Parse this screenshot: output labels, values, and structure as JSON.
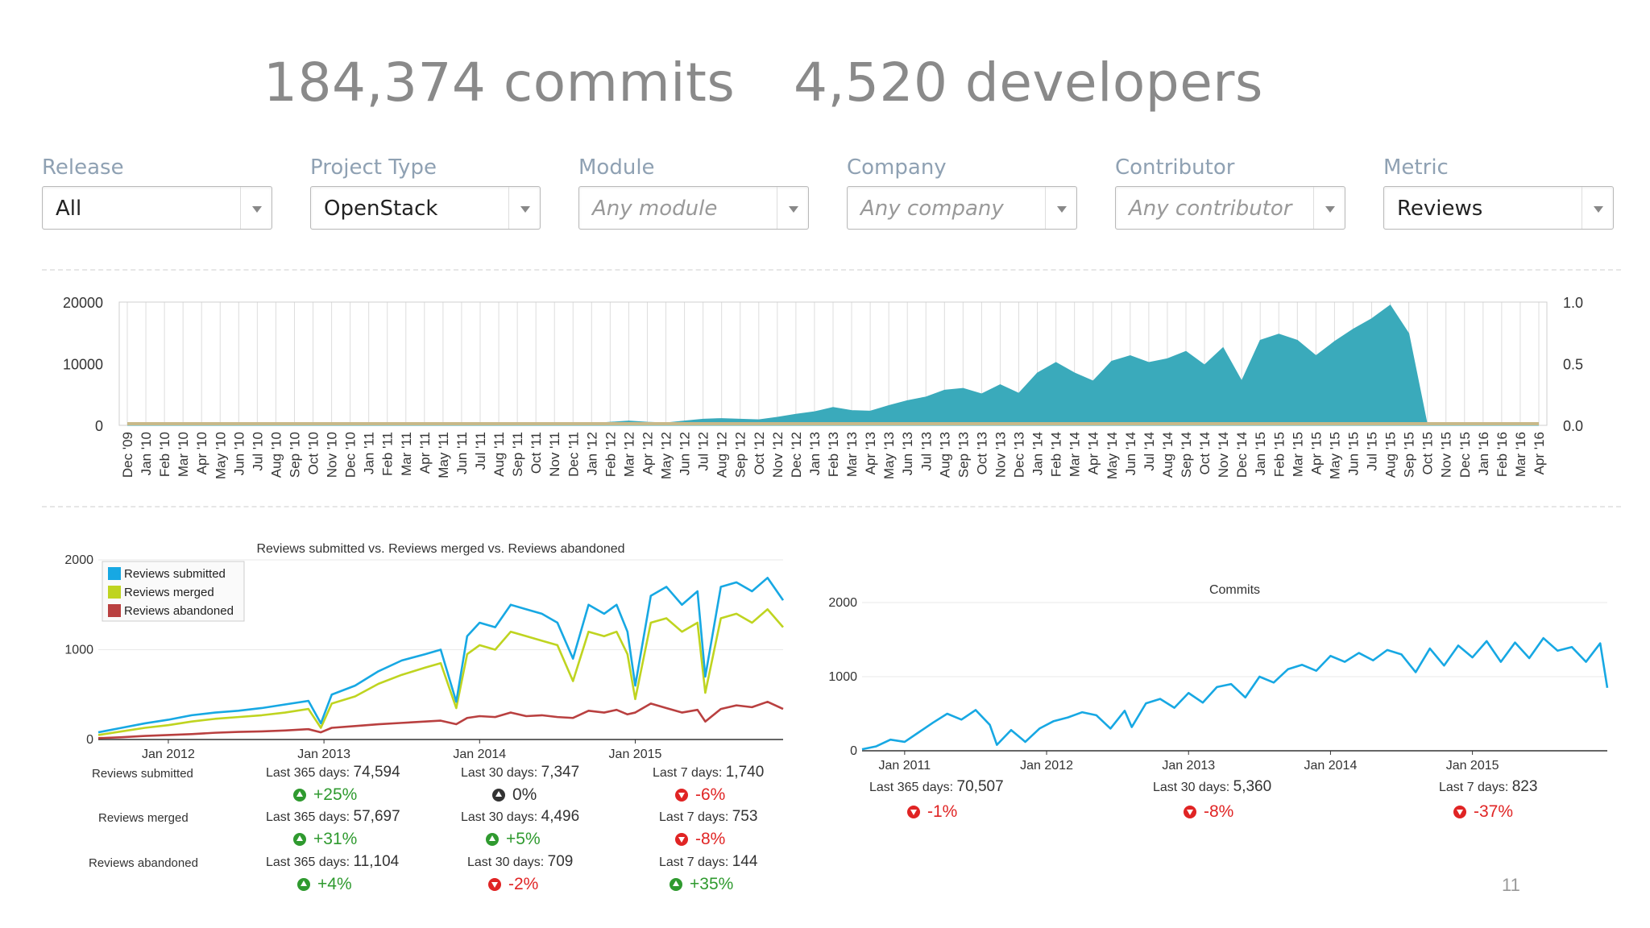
{
  "headline": {
    "commits": "184,374 commits",
    "developers": "4,520 developers"
  },
  "filters": [
    {
      "label": "Release",
      "value": "All",
      "placeholder": false
    },
    {
      "label": "Project Type",
      "value": "OpenStack",
      "placeholder": false
    },
    {
      "label": "Module",
      "value": "Any module",
      "placeholder": true
    },
    {
      "label": "Company",
      "value": "Any company",
      "placeholder": true
    },
    {
      "label": "Contributor",
      "value": "Any contributor",
      "placeholder": true
    },
    {
      "label": "Metric",
      "value": "Reviews",
      "placeholder": false
    }
  ],
  "colors": {
    "area": "#3aaabb",
    "baseline": "#c8b98a",
    "submitted": "#17a8e3",
    "merged": "#bfd420",
    "abandoned": "#b94040",
    "commits": "#17a8e3",
    "up": "#2f9a2f",
    "down": "#e02424"
  },
  "chart_data": [
    {
      "type": "area",
      "y_ticks": [
        "20000",
        "10000",
        "0"
      ],
      "y2_ticks": [
        "1.0",
        "0.5",
        "0.0"
      ],
      "ylim": [
        0,
        20000
      ],
      "y2lim": [
        0,
        1
      ],
      "categories": [
        "Dec '09",
        "Jan '10",
        "Feb '10",
        "Mar '10",
        "Apr '10",
        "May '10",
        "Jun '10",
        "Jul '10",
        "Aug '10",
        "Sep '10",
        "Oct '10",
        "Nov '10",
        "Dec '10",
        "Jan '11",
        "Feb '11",
        "Mar '11",
        "Apr '11",
        "May '11",
        "Jun '11",
        "Jul '11",
        "Aug '11",
        "Sep '11",
        "Oct '11",
        "Nov '11",
        "Dec '11",
        "Jan '12",
        "Feb '12",
        "Mar '12",
        "Apr '12",
        "May '12",
        "Jun '12",
        "Jul '12",
        "Aug '12",
        "Sep '12",
        "Oct '12",
        "Nov '12",
        "Dec '12",
        "Jan '13",
        "Feb '13",
        "Mar '13",
        "Apr '13",
        "May '13",
        "Jun '13",
        "Jul '13",
        "Aug '13",
        "Sep '13",
        "Oct '13",
        "Nov '13",
        "Dec '13",
        "Jan '14",
        "Feb '14",
        "Mar '14",
        "Apr '14",
        "May '14",
        "Jun '14",
        "Jul '14",
        "Aug '14",
        "Sep '14",
        "Oct '14",
        "Nov '14",
        "Dec '14",
        "Jan '15",
        "Feb '15",
        "Mar '15",
        "Apr '15",
        "May '15",
        "Jun '15",
        "Jul '15",
        "Aug '15",
        "Sep '15",
        "Oct '15",
        "Nov '15",
        "Dec '15",
        "Jan '16",
        "Feb '16",
        "Mar '16",
        "Apr '16"
      ],
      "values": [
        0,
        0,
        0,
        0,
        0,
        0,
        0,
        0,
        0,
        0,
        0,
        0,
        0,
        0,
        0,
        0,
        0,
        0,
        0,
        0,
        0,
        0,
        0,
        0,
        0,
        300,
        500,
        700,
        500,
        400,
        700,
        1000,
        1100,
        1000,
        900,
        1300,
        1800,
        2200,
        2900,
        2400,
        2300,
        3200,
        4000,
        4600,
        5700,
        6000,
        5100,
        6600,
        5200,
        8500,
        10200,
        8500,
        7200,
        10400,
        11300,
        10200,
        10800,
        12000,
        9800,
        12600,
        7200,
        13800,
        14800,
        13800,
        11300,
        13600,
        15600,
        17300,
        19500,
        14900,
        0,
        0,
        0,
        0,
        0,
        0,
        0
      ],
      "baseline_values": [
        0,
        0,
        0,
        0,
        0,
        0,
        0,
        0,
        0,
        0,
        0,
        0,
        0,
        0,
        0,
        0,
        0,
        0,
        0,
        0,
        0,
        0,
        0,
        0,
        0,
        0,
        0,
        0,
        0,
        0,
        0,
        0,
        0,
        0,
        0,
        0,
        0,
        0,
        0,
        0,
        0,
        0,
        0,
        0,
        0,
        0,
        0,
        0,
        0,
        0,
        0,
        0,
        0,
        0,
        0,
        0,
        0,
        0,
        0,
        0,
        0,
        0,
        0,
        0,
        0,
        0,
        0,
        0,
        0,
        0,
        0,
        0,
        0,
        0,
        0,
        0,
        0
      ]
    },
    {
      "type": "line",
      "title": "Reviews submitted vs. Reviews merged vs. Reviews abandoned",
      "y_ticks": [
        "2000",
        "1000",
        "0"
      ],
      "ylim": [
        0,
        2000
      ],
      "x_ticks": [
        "Jan 2012",
        "Jan 2013",
        "Jan 2014",
        "Jan 2015"
      ],
      "x_tick_years": [
        2012,
        2013,
        2014,
        2015
      ],
      "x_range": [
        2011.55,
        2015.95
      ],
      "x": [
        2011.55,
        2011.7,
        2011.85,
        2012.0,
        2012.15,
        2012.3,
        2012.45,
        2012.6,
        2012.75,
        2012.9,
        2012.98,
        2013.05,
        2013.2,
        2013.35,
        2013.5,
        2013.65,
        2013.75,
        2013.85,
        2013.92,
        2014.0,
        2014.1,
        2014.2,
        2014.3,
        2014.4,
        2014.5,
        2014.6,
        2014.7,
        2014.8,
        2014.88,
        2014.95,
        2015.0,
        2015.1,
        2015.2,
        2015.3,
        2015.4,
        2015.45,
        2015.55,
        2015.65,
        2015.75,
        2015.85,
        2015.95
      ],
      "series": [
        {
          "name": "Reviews submitted",
          "values": [
            80,
            130,
            180,
            220,
            270,
            300,
            320,
            350,
            390,
            430,
            180,
            500,
            600,
            760,
            880,
            950,
            1000,
            420,
            1150,
            1300,
            1250,
            1500,
            1450,
            1400,
            1300,
            900,
            1500,
            1400,
            1500,
            1200,
            600,
            1600,
            1700,
            1500,
            1650,
            700,
            1700,
            1750,
            1650,
            1800,
            1550
          ]
        },
        {
          "name": "Reviews merged",
          "values": [
            50,
            90,
            130,
            160,
            200,
            230,
            250,
            270,
            300,
            340,
            130,
            400,
            480,
            620,
            720,
            800,
            850,
            350,
            950,
            1050,
            1000,
            1200,
            1150,
            1100,
            1050,
            650,
            1200,
            1150,
            1200,
            950,
            450,
            1300,
            1350,
            1200,
            1300,
            520,
            1350,
            1400,
            1300,
            1450,
            1250
          ]
        },
        {
          "name": "Reviews abandoned",
          "values": [
            15,
            25,
            40,
            50,
            60,
            75,
            85,
            90,
            100,
            115,
            80,
            130,
            150,
            170,
            185,
            200,
            210,
            170,
            240,
            260,
            250,
            300,
            260,
            270,
            250,
            240,
            320,
            300,
            330,
            280,
            300,
            400,
            350,
            300,
            330,
            200,
            340,
            380,
            360,
            420,
            340
          ]
        }
      ]
    },
    {
      "type": "line",
      "title": "Commits",
      "y_ticks": [
        "2000",
        "1000",
        "0"
      ],
      "ylim": [
        0,
        2000
      ],
      "x_ticks": [
        "Jan 2011",
        "Jan 2012",
        "Jan 2013",
        "Jan 2014",
        "Jan 2015"
      ],
      "x_tick_years": [
        2011,
        2012,
        2013,
        2014,
        2015
      ],
      "x_range": [
        2010.7,
        2015.95
      ],
      "x": [
        2010.7,
        2010.8,
        2010.9,
        2011.0,
        2011.1,
        2011.2,
        2011.3,
        2011.4,
        2011.5,
        2011.6,
        2011.65,
        2011.75,
        2011.85,
        2011.95,
        2012.05,
        2012.15,
        2012.25,
        2012.35,
        2012.45,
        2012.55,
        2012.6,
        2012.7,
        2012.8,
        2012.9,
        2013.0,
        2013.1,
        2013.2,
        2013.3,
        2013.4,
        2013.5,
        2013.6,
        2013.7,
        2013.8,
        2013.9,
        2014.0,
        2014.1,
        2014.2,
        2014.3,
        2014.4,
        2014.5,
        2014.6,
        2014.7,
        2014.8,
        2014.9,
        2015.0,
        2015.1,
        2015.2,
        2015.3,
        2015.4,
        2015.5,
        2015.6,
        2015.7,
        2015.8,
        2015.9,
        2015.95
      ],
      "series": [
        {
          "name": "Commits",
          "values": [
            20,
            60,
            150,
            120,
            250,
            380,
            500,
            420,
            550,
            350,
            80,
            280,
            120,
            300,
            400,
            450,
            520,
            480,
            300,
            540,
            320,
            640,
            700,
            580,
            780,
            650,
            860,
            900,
            720,
            1000,
            920,
            1100,
            1160,
            1080,
            1280,
            1200,
            1320,
            1220,
            1360,
            1300,
            1060,
            1380,
            1150,
            1420,
            1260,
            1480,
            1200,
            1460,
            1250,
            1520,
            1350,
            1400,
            1200,
            1450,
            850
          ]
        }
      ]
    }
  ],
  "reviews_stats": [
    {
      "label": "Reviews submitted",
      "cells": [
        {
          "caption": "Last 365 days:",
          "value": "74,594",
          "change": "+25%",
          "dir": "up"
        },
        {
          "caption": "Last 30 days:",
          "value": "7,347",
          "change": "0%",
          "dir": "flat"
        },
        {
          "caption": "Last 7 days:",
          "value": "1,740",
          "change": "-6%",
          "dir": "down"
        }
      ]
    },
    {
      "label": "Reviews merged",
      "cells": [
        {
          "caption": "Last 365 days:",
          "value": "57,697",
          "change": "+31%",
          "dir": "up"
        },
        {
          "caption": "Last 30 days:",
          "value": "4,496",
          "change": "+5%",
          "dir": "up"
        },
        {
          "caption": "Last 7 days:",
          "value": "753",
          "change": "-8%",
          "dir": "down"
        }
      ]
    },
    {
      "label": "Reviews abandoned",
      "cells": [
        {
          "caption": "Last 365 days:",
          "value": "11,104",
          "change": "+4%",
          "dir": "up"
        },
        {
          "caption": "Last 30 days:",
          "value": "709",
          "change": "-2%",
          "dir": "down"
        },
        {
          "caption": "Last 7 days:",
          "value": "144",
          "change": "+35%",
          "dir": "up"
        }
      ]
    }
  ],
  "commits_stats": [
    {
      "caption": "Last 365 days:",
      "value": "70,507",
      "change": "-1%",
      "dir": "down"
    },
    {
      "caption": "Last 30 days:",
      "value": "5,360",
      "change": "-8%",
      "dir": "down"
    },
    {
      "caption": "Last 7 days:",
      "value": "823",
      "change": "-37%",
      "dir": "down"
    }
  ],
  "page_number": "11"
}
